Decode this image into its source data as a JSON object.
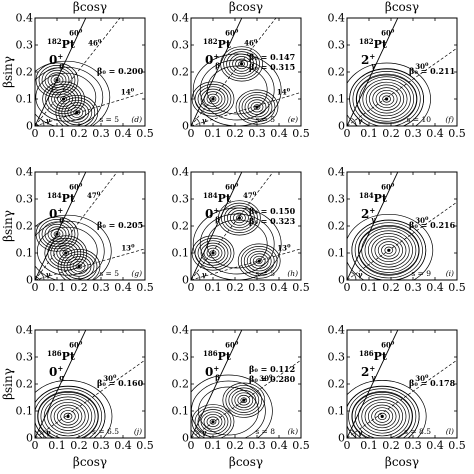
{
  "figure": {
    "xlabel": "βcosγ",
    "ylabel": "βsinγ",
    "gamma_symbol": "γ",
    "xticks": [
      "0",
      "0.1",
      "0.2",
      "0.3",
      "0.4",
      "0.5"
    ],
    "yticks": [
      "0",
      "0.1",
      "0.2",
      "0.3",
      "0.4"
    ],
    "degree_suffix": "0"
  },
  "chart_data": [
    {
      "type": "contour",
      "id": "d",
      "panel_label": "(d)",
      "nucleus_mass": "182",
      "nucleus_symbol": "Pt",
      "state": "0",
      "state_sub": "g",
      "state_sup": "+",
      "xlim": [
        0,
        0.5
      ],
      "ylim": [
        0,
        0.4
      ],
      "top_line_angle": "60",
      "lines": [
        {
          "angle": "46"
        },
        {
          "angle": "14"
        }
      ],
      "annotations": [
        "β₀ = 0.200"
      ],
      "scale": "s = 5",
      "minima": [
        {
          "x": 0.1,
          "y": 0.17
        },
        {
          "x": 0.13,
          "y": 0.1
        },
        {
          "x": 0.19,
          "y": 0.05
        }
      ]
    },
    {
      "type": "contour",
      "id": "e",
      "panel_label": "(e)",
      "nucleus_mass": "182",
      "nucleus_symbol": "Pt",
      "state": "0",
      "state_sub": "β",
      "state_sup": "+",
      "xlim": [
        0,
        0.5
      ],
      "ylim": [
        0,
        0.4
      ],
      "top_line_angle": "60",
      "lines": [
        {
          "angle": "46"
        },
        {
          "angle": "14"
        }
      ],
      "annotations": [
        "β₀ = 0.147",
        "β₀ = 0.315"
      ],
      "scale": "s = 5",
      "minima": [
        {
          "x": 0.1,
          "y": 0.1
        },
        {
          "x": 0.23,
          "y": 0.23
        },
        {
          "x": 0.3,
          "y": 0.07
        }
      ]
    },
    {
      "type": "contour",
      "id": "f",
      "panel_label": "(f)",
      "nucleus_mass": "182",
      "nucleus_symbol": "Pt",
      "state": "2",
      "state_sub": "γ",
      "state_sup": "+",
      "xlim": [
        0,
        0.5
      ],
      "ylim": [
        0,
        0.4
      ],
      "top_line_angle": "60",
      "lines": [
        {
          "angle": "30"
        }
      ],
      "annotations": [
        "β₀ = 0.211"
      ],
      "scale": "s = 10",
      "minima": [
        {
          "x": 0.18,
          "y": 0.1
        }
      ]
    },
    {
      "type": "contour",
      "id": "g",
      "panel_label": "(g)",
      "nucleus_mass": "184",
      "nucleus_symbol": "Pt",
      "state": "0",
      "state_sub": "g",
      "state_sup": "+",
      "xlim": [
        0,
        0.5
      ],
      "ylim": [
        0,
        0.4
      ],
      "top_line_angle": "60",
      "lines": [
        {
          "angle": "47"
        },
        {
          "angle": "13"
        }
      ],
      "annotations": [
        "β₀ = 0.205"
      ],
      "scale": "s = 5",
      "minima": [
        {
          "x": 0.1,
          "y": 0.17
        },
        {
          "x": 0.14,
          "y": 0.1
        },
        {
          "x": 0.2,
          "y": 0.05
        }
      ]
    },
    {
      "type": "contour",
      "id": "h",
      "panel_label": "(h)",
      "nucleus_mass": "184",
      "nucleus_symbol": "Pt",
      "state": "0",
      "state_sub": "β",
      "state_sup": "+",
      "xlim": [
        0,
        0.5
      ],
      "ylim": [
        0,
        0.4
      ],
      "top_line_angle": "60",
      "lines": [
        {
          "angle": "47"
        },
        {
          "angle": "13"
        }
      ],
      "annotations": [
        "β₀ = 0.150",
        "β₀ = 0.323"
      ],
      "scale": "s = 5",
      "minima": [
        {
          "x": 0.1,
          "y": 0.1
        },
        {
          "x": 0.22,
          "y": 0.23
        },
        {
          "x": 0.31,
          "y": 0.07
        }
      ]
    },
    {
      "type": "contour",
      "id": "i",
      "panel_label": "(i)",
      "nucleus_mass": "184",
      "nucleus_symbol": "Pt",
      "state": "2",
      "state_sub": "γ",
      "state_sup": "+",
      "xlim": [
        0,
        0.5
      ],
      "ylim": [
        0,
        0.4
      ],
      "top_line_angle": "60",
      "lines": [
        {
          "angle": "30"
        }
      ],
      "annotations": [
        "β₀ = 0.216"
      ],
      "scale": "s = 9",
      "minima": [
        {
          "x": 0.19,
          "y": 0.11
        }
      ]
    },
    {
      "type": "contour",
      "id": "j",
      "panel_label": "(j)",
      "nucleus_mass": "186",
      "nucleus_symbol": "Pt",
      "state": "0",
      "state_sub": "g",
      "state_sup": "+",
      "xlim": [
        0,
        0.5
      ],
      "ylim": [
        0,
        0.4
      ],
      "top_line_angle": "60",
      "lines": [
        {
          "angle": "30"
        }
      ],
      "annotations": [
        "β₀ = 0.160"
      ],
      "scale": "s = 6.5",
      "minima": [
        {
          "x": 0.15,
          "y": 0.08
        }
      ]
    },
    {
      "type": "contour",
      "id": "k",
      "panel_label": "(k)",
      "nucleus_mass": "186",
      "nucleus_symbol": "Pt",
      "state": "0",
      "state_sub": "β",
      "state_sup": "+",
      "xlim": [
        0,
        0.5
      ],
      "ylim": [
        0,
        0.4
      ],
      "top_line_angle": "60",
      "lines": [
        {
          "angle": "30"
        }
      ],
      "annotations": [
        "β₀ = 0.112",
        "β₀ = 0.280"
      ],
      "scale": "s = 8",
      "minima": [
        {
          "x": 0.1,
          "y": 0.06
        },
        {
          "x": 0.24,
          "y": 0.14
        }
      ]
    },
    {
      "type": "contour",
      "id": "l",
      "panel_label": "(l)",
      "nucleus_mass": "186",
      "nucleus_symbol": "Pt",
      "state": "2",
      "state_sub": "γ",
      "state_sup": "+",
      "xlim": [
        0,
        0.5
      ],
      "ylim": [
        0,
        0.4
      ],
      "top_line_angle": "60",
      "lines": [
        {
          "angle": "30"
        }
      ],
      "annotations": [
        "β₀ = 0.178"
      ],
      "scale": "s = 8.5",
      "minima": [
        {
          "x": 0.16,
          "y": 0.08
        }
      ]
    }
  ]
}
